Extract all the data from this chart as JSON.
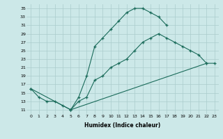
{
  "xlabel": "Humidex (Indice chaleur)",
  "bg_color": "#cce8e8",
  "grid_color": "#aacccc",
  "line_color": "#1a6b5a",
  "xlim": [
    -0.5,
    23.5
  ],
  "ylim": [
    10.0,
    36.0
  ],
  "yticks": [
    11,
    13,
    15,
    17,
    19,
    21,
    23,
    25,
    27,
    29,
    31,
    33,
    35
  ],
  "xticks": [
    0,
    1,
    2,
    3,
    4,
    5,
    6,
    7,
    8,
    9,
    10,
    11,
    12,
    13,
    14,
    15,
    16,
    17,
    18,
    19,
    20,
    21,
    22,
    23
  ],
  "line1_x": [
    0,
    1,
    2,
    3,
    4,
    5,
    6,
    7,
    8,
    9,
    10,
    11,
    12,
    13,
    14,
    15,
    16,
    17
  ],
  "line1_y": [
    16,
    14,
    13,
    13,
    12,
    11,
    14,
    19,
    26,
    28,
    30,
    32,
    34,
    35,
    35,
    34,
    33,
    31
  ],
  "line2_x": [
    5,
    6,
    7,
    8,
    9,
    10,
    11,
    12,
    13,
    14,
    15,
    16,
    17,
    18,
    19,
    20,
    21,
    22
  ],
  "line2_y": [
    11,
    13,
    14,
    18,
    19,
    21,
    22,
    23,
    25,
    27,
    28,
    29,
    28,
    27,
    26,
    25,
    24,
    22
  ],
  "line3_x": [
    0,
    5,
    22,
    23
  ],
  "line3_y": [
    16,
    11,
    22,
    22
  ]
}
